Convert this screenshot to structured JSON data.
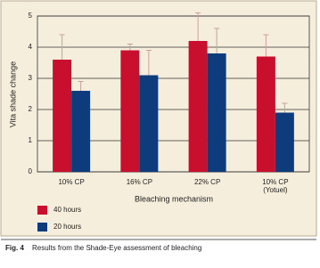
{
  "chart_data": {
    "type": "bar",
    "categories": [
      "10% CP",
      "16% CP",
      "22% CP",
      "10% CP\n(Yotuel)"
    ],
    "series": [
      {
        "name": "40 hours",
        "color": "#c8102e",
        "values": [
          3.6,
          3.9,
          4.2,
          3.7
        ],
        "errors": [
          0.8,
          0.2,
          0.9,
          0.7
        ]
      },
      {
        "name": "20 hours",
        "color": "#0d3b7c",
        "values": [
          2.6,
          3.1,
          3.8,
          1.9
        ],
        "errors": [
          0.3,
          0.8,
          0.8,
          0.3
        ]
      }
    ],
    "y_label": "Vita shade change",
    "x_label": "Bleaching mechanism",
    "ylim": [
      0,
      5
    ],
    "yticks": [
      0,
      1,
      2,
      3,
      4,
      5
    ],
    "grid": true,
    "figure_label": "Fig. 4",
    "caption": "Results from the Shade-Eye assessment of bleaching"
  }
}
